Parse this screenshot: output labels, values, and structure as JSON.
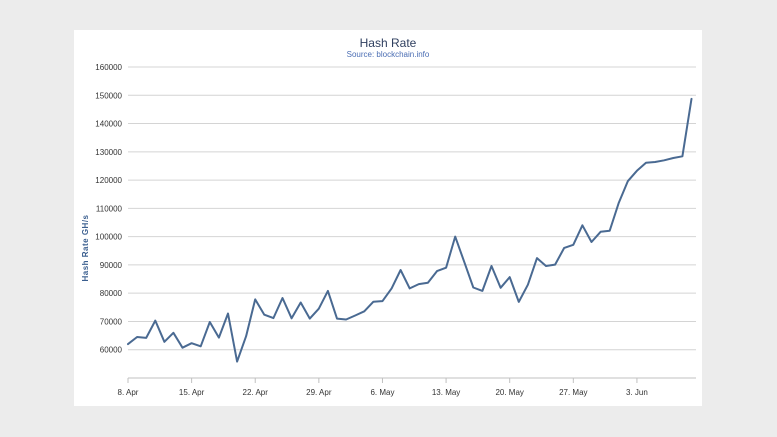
{
  "chart_data": {
    "type": "line",
    "title": "Hash Rate",
    "subtitle": "Source: blockchain.info",
    "xlabel": "",
    "ylabel": "Hash Rate GH/s",
    "ylim": [
      50000,
      160000
    ],
    "yticks": [
      60000,
      70000,
      80000,
      90000,
      100000,
      110000,
      120000,
      130000,
      140000,
      150000,
      160000
    ],
    "ytick_labels": [
      "60000",
      "70000",
      "80000",
      "90000",
      "100000",
      "110000",
      "120000",
      "130000",
      "140000",
      "150000",
      "160000"
    ],
    "xlim": [
      0,
      62.5
    ],
    "xticks": [
      0,
      7,
      14,
      21,
      28,
      35,
      42,
      49,
      56
    ],
    "xtick_labels": [
      "8. Apr",
      "15. Apr",
      "22. Apr",
      "29. Apr",
      "6. May",
      "13. May",
      "20. May",
      "27. May",
      "3. Jun"
    ],
    "grid": true,
    "series_color": "#4a6a92",
    "series": [
      {
        "name": "Hash Rate",
        "x": [
          0,
          1,
          2,
          3,
          4,
          5,
          6,
          7,
          8,
          9,
          10,
          11,
          12,
          13,
          14,
          15,
          16,
          17,
          18,
          19,
          20,
          21,
          22,
          23,
          24,
          25,
          26,
          27,
          28,
          29,
          30,
          31,
          32,
          33,
          34,
          35,
          36,
          37,
          38,
          39,
          40,
          41,
          42,
          43,
          44,
          45,
          46,
          47,
          48,
          49,
          50,
          51,
          52,
          53,
          54,
          55,
          56,
          57,
          58,
          59,
          60,
          61,
          62
        ],
        "values": [
          62000,
          64500,
          64200,
          70300,
          62800,
          66000,
          60700,
          62300,
          61200,
          69800,
          64300,
          72800,
          55800,
          64800,
          77800,
          72400,
          71200,
          78300,
          71100,
          76700,
          71000,
          74500,
          80800,
          71000,
          70700,
          72100,
          73600,
          77000,
          77200,
          81700,
          88200,
          81700,
          83200,
          83700,
          87800,
          89000,
          100000,
          91000,
          82000,
          80800,
          89600,
          81900,
          85700,
          76900,
          83000,
          92400,
          89600,
          90100,
          96000,
          97100,
          104000,
          98100,
          101700,
          102100,
          112000,
          119600,
          123300,
          126100,
          126400,
          127000,
          127800,
          128400,
          148700
        ]
      }
    ]
  }
}
